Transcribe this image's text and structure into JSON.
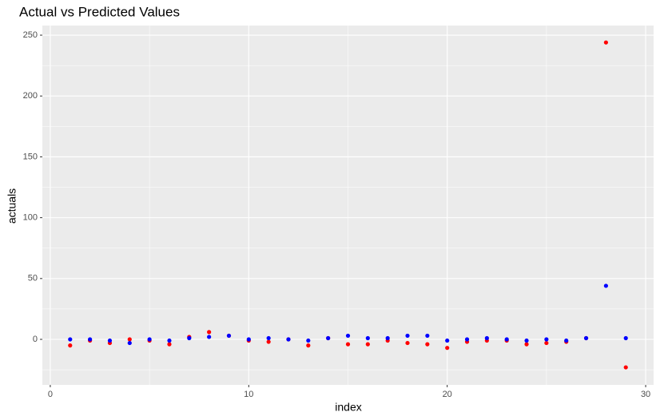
{
  "chart_data": {
    "type": "scatter",
    "title": "Actual vs Predicted Values",
    "x_label": "index",
    "y_label": "actuals",
    "x": [
      1,
      2,
      3,
      4,
      5,
      6,
      7,
      8,
      9,
      10,
      11,
      12,
      13,
      14,
      15,
      16,
      17,
      18,
      19,
      20,
      21,
      22,
      23,
      24,
      25,
      26,
      27,
      28,
      29
    ],
    "series": [
      {
        "color": "#ff0000",
        "values": [
          -5,
          -1,
          -3,
          0,
          -1,
          -4,
          2,
          6,
          3,
          -1,
          -2,
          0,
          -5,
          1,
          -4,
          -4,
          -1,
          -3,
          -4,
          -7,
          -2,
          -1,
          -1,
          -4,
          -3,
          -2,
          1,
          244,
          -23
        ]
      },
      {
        "color": "#0000ff",
        "values": [
          0,
          0,
          -1,
          -3,
          0,
          -1,
          1,
          2,
          3,
          0,
          1,
          0,
          -1,
          1,
          3,
          1,
          1,
          3,
          3,
          -1,
          0,
          1,
          0,
          -1,
          0,
          -1,
          1,
          44,
          1
        ]
      }
    ],
    "xlim": [
      -0.4,
      30.4
    ],
    "xticks": [
      0,
      10,
      20,
      30
    ],
    "x_minor_grid": [
      5,
      15,
      25
    ],
    "ylim": [
      -37.4,
      257.9
    ],
    "yticks": [
      0,
      50,
      100,
      150,
      200,
      250
    ],
    "y_minor_grid": [
      -25,
      25,
      75,
      125,
      175,
      225
    ],
    "grid": true
  }
}
